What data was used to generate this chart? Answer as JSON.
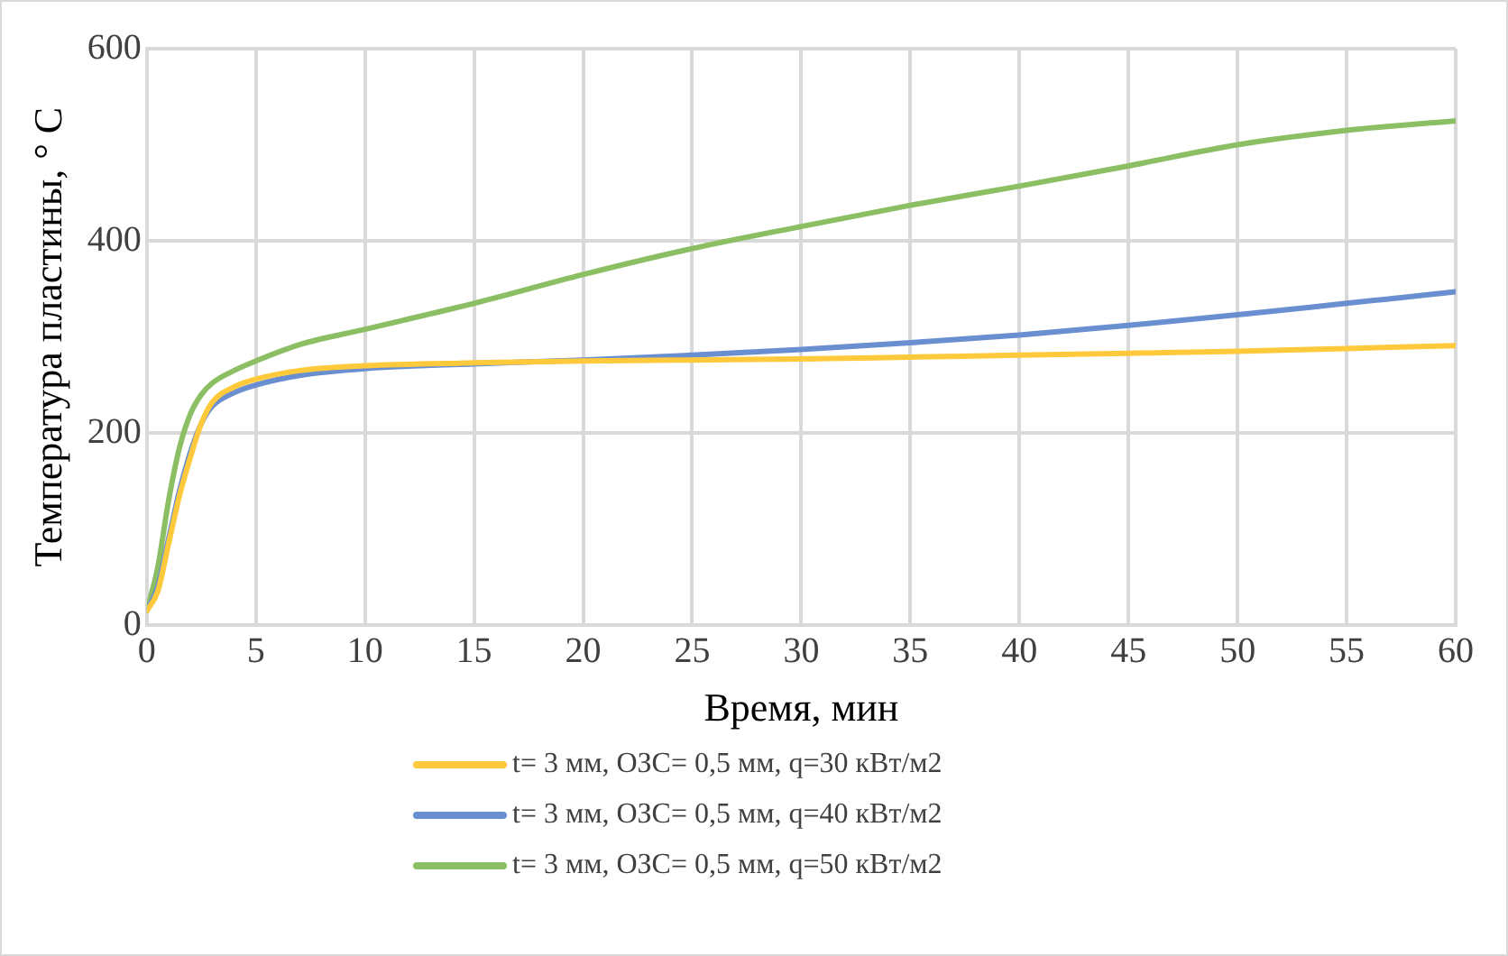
{
  "chart_data": {
    "type": "line",
    "xlabel": "Время, мин",
    "ylabel": "Температура пластины, ° C",
    "x": [
      0,
      0.5,
      1,
      1.5,
      2,
      2.5,
      3,
      4,
      5,
      7,
      10,
      15,
      20,
      25,
      30,
      35,
      40,
      45,
      50,
      55,
      60
    ],
    "series": [
      {
        "name": "t= 3 мм, ОЗС= 0,5 мм, q=30 кВт/м2",
        "color": "#ffc93c",
        "values": [
          15,
          35,
          85,
          135,
          175,
          210,
          232,
          248,
          256,
          265,
          270,
          273,
          275,
          276,
          277,
          279,
          281,
          283,
          285,
          288,
          291
        ]
      },
      {
        "name": "t= 3 мм, ОЗС= 0,5 мм, q=40 кВт/м2",
        "color": "#6a8fd0",
        "values": [
          15,
          40,
          90,
          140,
          180,
          210,
          228,
          242,
          250,
          260,
          267,
          272,
          276,
          281,
          287,
          294,
          302,
          312,
          323,
          335,
          347
        ]
      },
      {
        "name": "t= 3 мм, ОЗС= 0,5 мм, q=50 кВт/м2",
        "color": "#8cbf64",
        "values": [
          15,
          60,
          130,
          185,
          220,
          240,
          252,
          265,
          275,
          292,
          308,
          335,
          365,
          392,
          415,
          437,
          457,
          478,
          500,
          515,
          525
        ]
      }
    ],
    "xlim": [
      0,
      60
    ],
    "xticks": [
      0,
      5,
      10,
      15,
      20,
      25,
      30,
      35,
      40,
      45,
      50,
      55,
      60
    ],
    "ylim": [
      0,
      600
    ],
    "yticks": [
      0,
      200,
      400,
      600
    ],
    "grid": true,
    "legend": "bottom",
    "marker": "none",
    "line_style": "solid"
  }
}
